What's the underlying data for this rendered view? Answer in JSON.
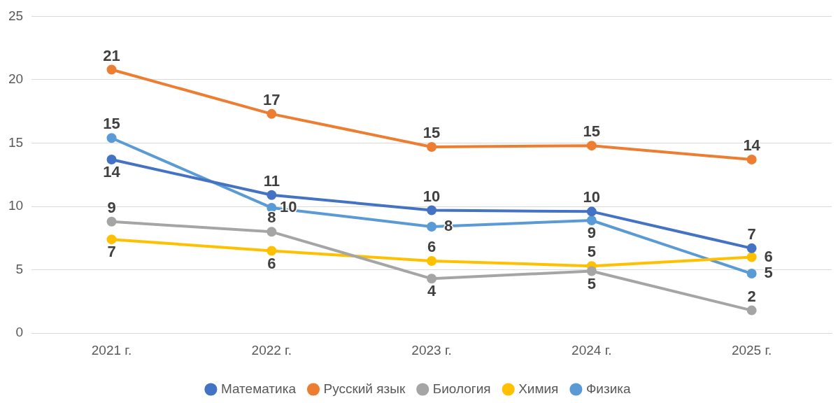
{
  "chart_data": {
    "type": "line",
    "categories": [
      "2021 г.",
      "2022 г.",
      "2023 г.",
      "2024 г.",
      "2025 г."
    ],
    "series": [
      {
        "name": "Математика",
        "color": "#4472c4",
        "values": [
          13.7,
          10.9,
          9.7,
          9.6,
          6.7
        ],
        "value_labels": [
          "14",
          "11",
          "10",
          "10",
          "7"
        ]
      },
      {
        "name": "Русский язык",
        "color": "#ed7d31",
        "values": [
          20.8,
          17.3,
          14.7,
          14.8,
          13.7
        ],
        "value_labels": [
          "21",
          "17",
          "15",
          "15",
          "14"
        ]
      },
      {
        "name": "Биология",
        "color": "#a5a5a5",
        "values": [
          8.8,
          8.0,
          4.3,
          4.9,
          1.8
        ],
        "value_labels": [
          "9",
          "8",
          "4",
          "5",
          "2"
        ]
      },
      {
        "name": "Химия",
        "color": "#ffc000",
        "values": [
          7.4,
          6.5,
          5.7,
          5.3,
          6.0
        ],
        "value_labels": [
          "7",
          "6",
          "6",
          "5",
          "6"
        ]
      },
      {
        "name": "Физика",
        "color": "#5b9bd5",
        "values": [
          15.4,
          9.9,
          8.4,
          8.9,
          4.7
        ],
        "value_labels": [
          "15",
          "10",
          "8",
          "9",
          "5"
        ]
      }
    ],
    "ylim": [
      0,
      25
    ],
    "yticks": [
      0,
      5,
      10,
      15,
      20,
      25
    ],
    "grid": "y",
    "legend": "bottom",
    "marker": "circle",
    "line_style": "solid"
  }
}
